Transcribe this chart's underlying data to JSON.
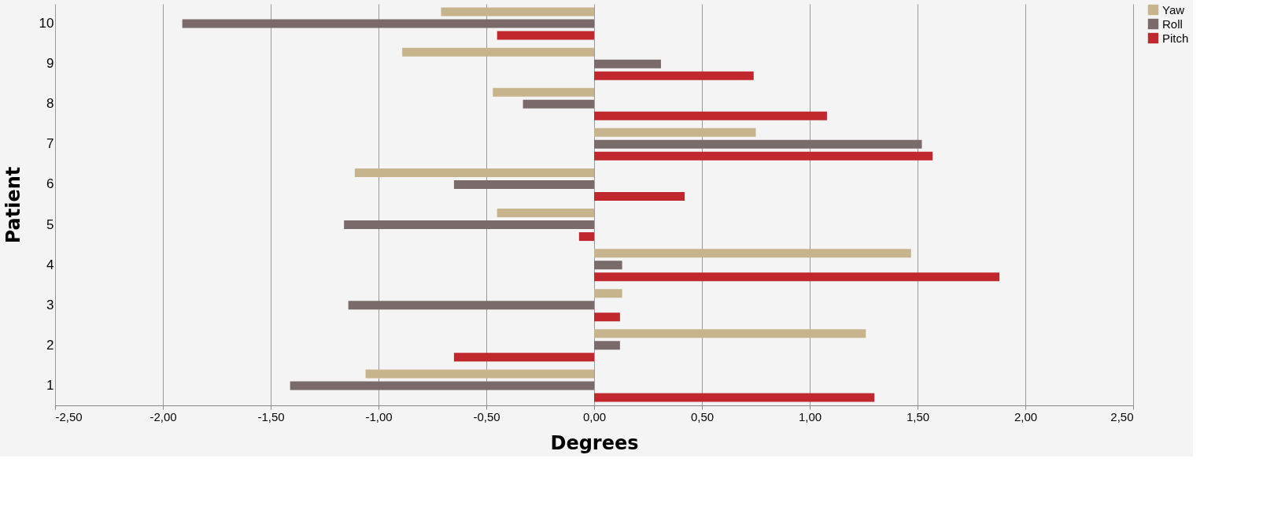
{
  "chart_data": {
    "type": "bar",
    "orientation": "horizontal",
    "xlabel": "Degrees",
    "ylabel": "Patient",
    "categories": [
      "10",
      "9",
      "8",
      "7",
      "6",
      "5",
      "4",
      "3",
      "2",
      "1"
    ],
    "series": [
      {
        "name": "Yaw",
        "color": "#c8b48c",
        "values": [
          -0.71,
          -0.89,
          -0.47,
          0.75,
          -1.11,
          -0.45,
          1.47,
          0.13,
          1.26,
          -1.06
        ]
      },
      {
        "name": "Roll",
        "color": "#7a6a6a",
        "values": [
          -1.91,
          0.31,
          -0.33,
          1.52,
          -0.65,
          -1.16,
          0.13,
          -1.14,
          0.12,
          -1.41
        ]
      },
      {
        "name": "Pitch",
        "color": "#c0282d",
        "values": [
          -0.45,
          0.74,
          1.08,
          1.57,
          0.42,
          -0.07,
          1.88,
          0.12,
          -0.65,
          1.3
        ]
      }
    ],
    "xlim": [
      -2.5,
      2.5
    ],
    "xticks": [
      {
        "value": -2.5,
        "label": "-2,50"
      },
      {
        "value": -2,
        "label": "-2,00"
      },
      {
        "value": -1.5,
        "label": "-1,50"
      },
      {
        "value": -1,
        "label": "-1,00"
      },
      {
        "value": -0.5,
        "label": "-0,50"
      },
      {
        "value": 0,
        "label": "0,00"
      },
      {
        "value": 0.5,
        "label": "0,50"
      },
      {
        "value": 1,
        "label": "1,00"
      },
      {
        "value": 1.5,
        "label": "1,50"
      },
      {
        "value": 2,
        "label": "2,00"
      },
      {
        "value": 2.5,
        "label": "2,50"
      }
    ],
    "grid": "x",
    "legend": "right"
  }
}
